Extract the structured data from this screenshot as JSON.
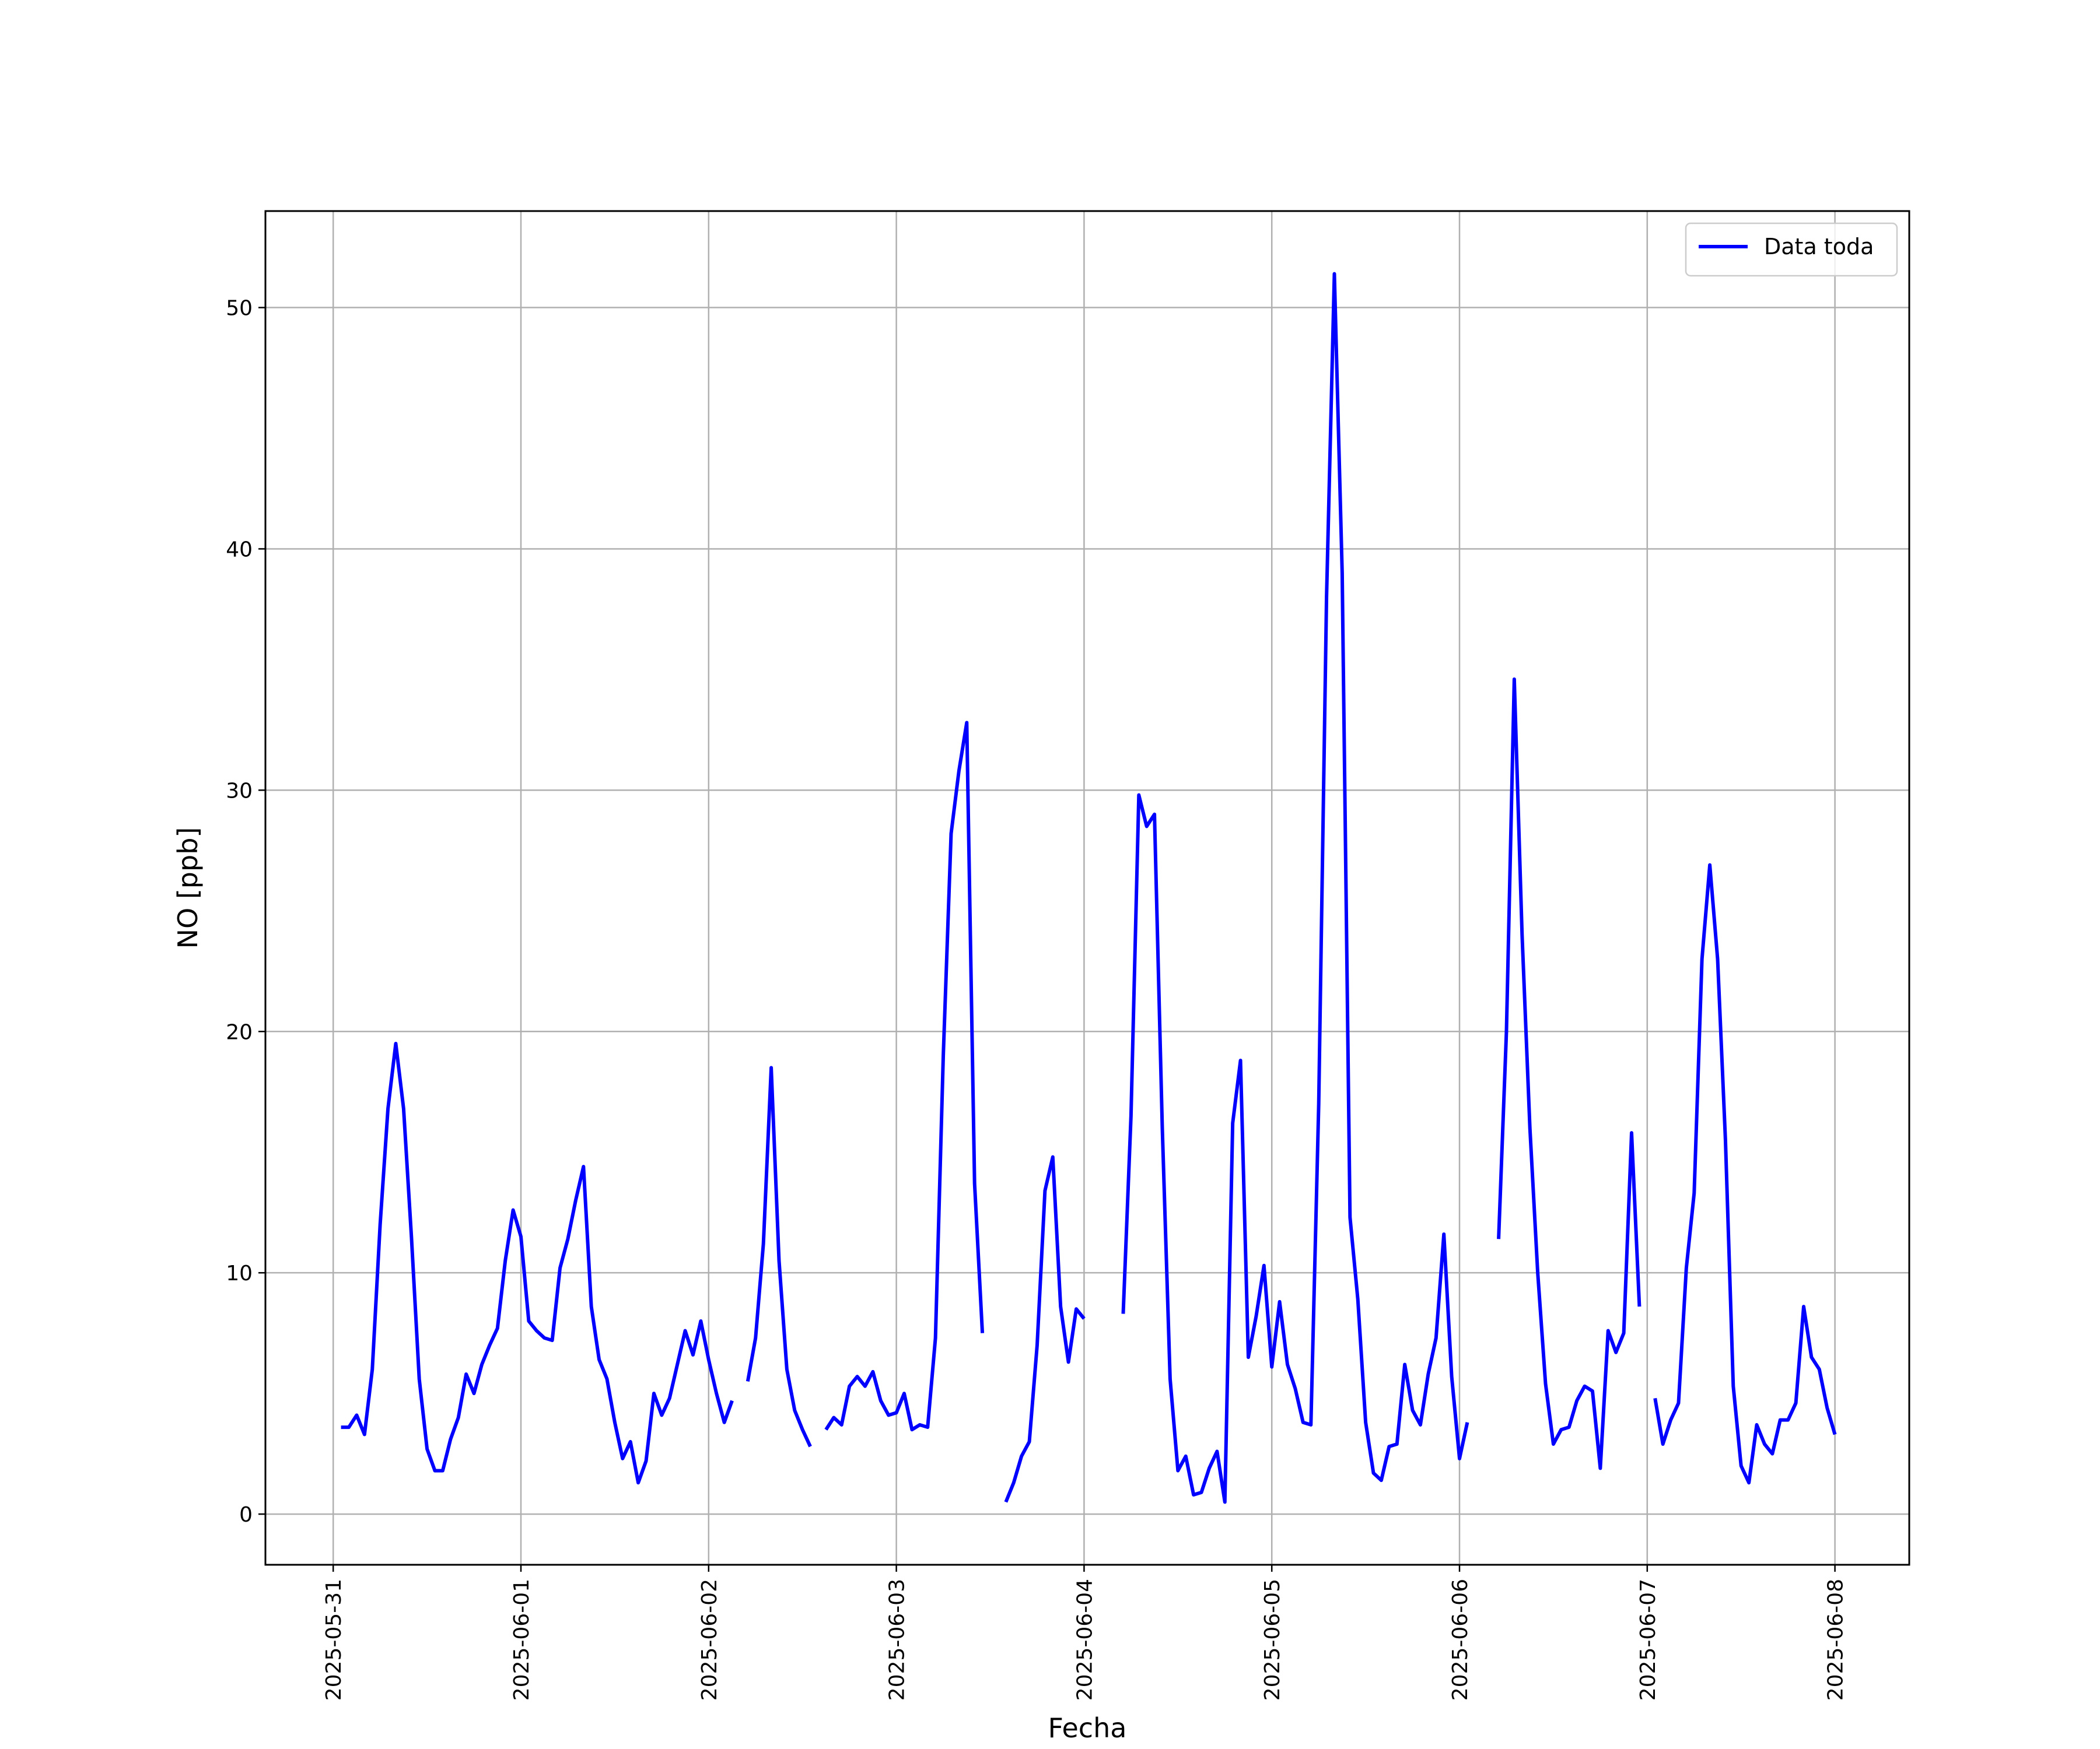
{
  "chart_data": {
    "type": "line",
    "xlabel": "Fecha",
    "ylabel": "NO [ppb]",
    "grid": true,
    "legend": "upper right",
    "xlim": [
      "2025-05-30 15:20",
      "2025-06-08 09:30"
    ],
    "xticks": [
      "2025-05-31",
      "2025-06-01",
      "2025-06-02",
      "2025-06-03",
      "2025-06-04",
      "2025-06-05",
      "2025-06-06",
      "2025-06-07",
      "2025-06-08"
    ],
    "ylim": [
      -2.1,
      54
    ],
    "yticks": [
      0,
      10,
      20,
      30,
      40,
      50
    ],
    "x": [
      "2025-05-31 01:00",
      "2025-05-31 02:00",
      "2025-05-31 03:00",
      "2025-05-31 04:00",
      "2025-05-31 05:00",
      "2025-05-31 06:00",
      "2025-05-31 07:00",
      "2025-05-31 08:00",
      "2025-05-31 09:00",
      "2025-05-31 10:00",
      "2025-05-31 11:00",
      "2025-05-31 12:00",
      "2025-05-31 13:00",
      "2025-05-31 14:00",
      "2025-05-31 15:00",
      "2025-05-31 16:00",
      "2025-05-31 17:00",
      "2025-05-31 18:00",
      "2025-05-31 19:00",
      "2025-05-31 20:00",
      "2025-05-31 21:00",
      "2025-05-31 22:00",
      "2025-05-31 23:00",
      "2025-06-01 00:00",
      "2025-06-01 01:00",
      "2025-06-01 02:00",
      "2025-06-01 03:00",
      "2025-06-01 04:00",
      "2025-06-01 05:00",
      "2025-06-01 06:00",
      "2025-06-01 07:00",
      "2025-06-01 08:00",
      "2025-06-01 09:00",
      "2025-06-01 10:00",
      "2025-06-01 11:00",
      "2025-06-01 12:00",
      "2025-06-01 13:00",
      "2025-06-01 14:00",
      "2025-06-01 15:00",
      "2025-06-01 16:00",
      "2025-06-01 17:00",
      "2025-06-01 18:00",
      "2025-06-01 19:00",
      "2025-06-01 20:00",
      "2025-06-01 21:00",
      "2025-06-01 22:00",
      "2025-06-01 23:00",
      "2025-06-02 00:00",
      "2025-06-02 01:00",
      "2025-06-02 02:00",
      "2025-06-02 03:00",
      "2025-06-02 04:00",
      "2025-06-02 05:00",
      "2025-06-02 06:00",
      "2025-06-02 07:00",
      "2025-06-02 08:00",
      "2025-06-02 09:00",
      "2025-06-02 10:00",
      "2025-06-02 11:00",
      "2025-06-02 12:00",
      "2025-06-02 13:00",
      "2025-06-02 14:00",
      "2025-06-02 15:00",
      "2025-06-02 16:00",
      "2025-06-02 17:00",
      "2025-06-02 18:00",
      "2025-06-02 19:00",
      "2025-06-02 20:00",
      "2025-06-02 21:00",
      "2025-06-02 22:00",
      "2025-06-02 23:00",
      "2025-06-03 00:00",
      "2025-06-03 01:00",
      "2025-06-03 02:00",
      "2025-06-03 03:00",
      "2025-06-03 04:00",
      "2025-06-03 05:00",
      "2025-06-03 06:00",
      "2025-06-03 07:00",
      "2025-06-03 08:00",
      "2025-06-03 09:00",
      "2025-06-03 10:00",
      "2025-06-03 11:00",
      "2025-06-03 12:00",
      "2025-06-03 13:00",
      "2025-06-03 14:00",
      "2025-06-03 15:00",
      "2025-06-03 16:00",
      "2025-06-03 17:00",
      "2025-06-03 18:00",
      "2025-06-03 19:00",
      "2025-06-03 20:00",
      "2025-06-03 21:00",
      "2025-06-03 22:00",
      "2025-06-03 23:00",
      "2025-06-04 00:00",
      "2025-06-04 01:00",
      "2025-06-04 02:00",
      "2025-06-04 03:00",
      "2025-06-04 04:00",
      "2025-06-04 05:00",
      "2025-06-04 06:00",
      "2025-06-04 07:00",
      "2025-06-04 08:00",
      "2025-06-04 09:00",
      "2025-06-04 10:00",
      "2025-06-04 11:00",
      "2025-06-04 12:00",
      "2025-06-04 13:00",
      "2025-06-04 14:00",
      "2025-06-04 15:00",
      "2025-06-04 16:00",
      "2025-06-04 17:00",
      "2025-06-04 18:00",
      "2025-06-04 19:00",
      "2025-06-04 20:00",
      "2025-06-04 21:00",
      "2025-06-04 22:00",
      "2025-06-04 23:00",
      "2025-06-05 00:00",
      "2025-06-05 01:00",
      "2025-06-05 02:00",
      "2025-06-05 03:00",
      "2025-06-05 04:00",
      "2025-06-05 05:00",
      "2025-06-05 06:00",
      "2025-06-05 07:00",
      "2025-06-05 08:00",
      "2025-06-05 09:00",
      "2025-06-05 10:00",
      "2025-06-05 11:00",
      "2025-06-05 12:00",
      "2025-06-05 13:00",
      "2025-06-05 14:00",
      "2025-06-05 15:00",
      "2025-06-05 16:00",
      "2025-06-05 17:00",
      "2025-06-05 18:00",
      "2025-06-05 19:00",
      "2025-06-05 20:00",
      "2025-06-05 21:00",
      "2025-06-05 22:00",
      "2025-06-05 23:00",
      "2025-06-06 00:00",
      "2025-06-06 01:00",
      "2025-06-06 02:00",
      "2025-06-06 03:00",
      "2025-06-06 04:00",
      "2025-06-06 05:00",
      "2025-06-06 06:00",
      "2025-06-06 07:00",
      "2025-06-06 08:00",
      "2025-06-06 09:00",
      "2025-06-06 10:00",
      "2025-06-06 11:00",
      "2025-06-06 12:00",
      "2025-06-06 13:00",
      "2025-06-06 14:00",
      "2025-06-06 15:00",
      "2025-06-06 16:00",
      "2025-06-06 17:00",
      "2025-06-06 18:00",
      "2025-06-06 19:00",
      "2025-06-06 20:00",
      "2025-06-06 21:00",
      "2025-06-06 22:00",
      "2025-06-06 23:00",
      "2025-06-07 00:00",
      "2025-06-07 01:00",
      "2025-06-07 02:00",
      "2025-06-07 03:00",
      "2025-06-07 04:00",
      "2025-06-07 05:00",
      "2025-06-07 06:00",
      "2025-06-07 07:00",
      "2025-06-07 08:00",
      "2025-06-07 09:00",
      "2025-06-07 10:00",
      "2025-06-07 11:00",
      "2025-06-07 12:00",
      "2025-06-07 13:00",
      "2025-06-07 14:00",
      "2025-06-07 15:00",
      "2025-06-07 16:00",
      "2025-06-07 17:00",
      "2025-06-07 18:00",
      "2025-06-07 19:00",
      "2025-06-07 20:00",
      "2025-06-07 21:00",
      "2025-06-07 22:00",
      "2025-06-07 23:00",
      "2025-06-08 00:00"
    ],
    "series": [
      {
        "name": "Data toda",
        "color": "#0000ff",
        "values": [
          3.6,
          3.6,
          4.1,
          3.3,
          6,
          12,
          16.8,
          19.5,
          16.8,
          11.5,
          5.6,
          2.7,
          1.8,
          1.8,
          3.1,
          4,
          5.8,
          5,
          6.2,
          7,
          7.7,
          10.5,
          12.6,
          11.5,
          8,
          7.6,
          7.3,
          7.2,
          10.2,
          11.4,
          13,
          14.4,
          8.6,
          6.4,
          5.6,
          3.8,
          2.3,
          3,
          1.3,
          2.2,
          5,
          4.1,
          4.8,
          6.2,
          7.6,
          6.6,
          8,
          6.4,
          5,
          3.8,
          4.7,
          null,
          5.5,
          7.3,
          11.2,
          18.5,
          10.5,
          6,
          4.3,
          3.5,
          2.8,
          null,
          3.5,
          4,
          3.7,
          5.3,
          5.7,
          5.3,
          5.9,
          4.7,
          4.1,
          4.2,
          5,
          3.5,
          3.7,
          3.6,
          7.3,
          19,
          28.2,
          30.8,
          32.8,
          13.7,
          7.5,
          null,
          null,
          0.5,
          1.3,
          2.4,
          3,
          7,
          13.4,
          14.8,
          8.6,
          6.3,
          8.5,
          8.1,
          null,
          null,
          null,
          null,
          8.3,
          16.5,
          29.8,
          28.5,
          29,
          16,
          5.6,
          1.8,
          2.4,
          0.8,
          0.9,
          1.9,
          2.6,
          0.5,
          16.2,
          18.8,
          6.5,
          8.2,
          10.3,
          6.1,
          8.8,
          6.2,
          5.2,
          3.8,
          3.7,
          17,
          38,
          51.4,
          39,
          12.3,
          8.9,
          3.8,
          1.7,
          1.4,
          2.8,
          2.9,
          6.2,
          4.3,
          3.7,
          5.8,
          7.3,
          11.6,
          5.7,
          2.3,
          3.8,
          null,
          null,
          null,
          11.4,
          20,
          34.6,
          24,
          16,
          10,
          5.4,
          2.9,
          3.5,
          3.6,
          4.7,
          5.3,
          5.1,
          1.9,
          7.6,
          6.7,
          7.5,
          15.8,
          8.6,
          null,
          4.8,
          2.9,
          3.9,
          4.6,
          10.2,
          13.3,
          23,
          26.9,
          23,
          15.5,
          5.3,
          2,
          1.3,
          3.7,
          2.9,
          2.5,
          3.9,
          3.9,
          4.6,
          8.6,
          6.5,
          6,
          4.4,
          3.3
        ]
      }
    ]
  }
}
